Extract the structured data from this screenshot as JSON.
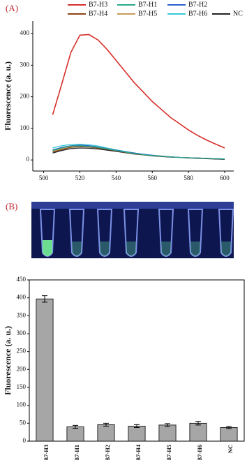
{
  "chart_data": [
    {
      "type": "line",
      "panel_label": "(A)",
      "ylabel": "Fluorescence (a. u.)",
      "x": [
        505,
        510,
        515,
        520,
        525,
        530,
        535,
        540,
        545,
        550,
        555,
        560,
        565,
        570,
        575,
        580,
        585,
        590,
        595,
        600
      ],
      "series": [
        {
          "name": "B7-H3",
          "color": "#d62f2a",
          "values": [
            143,
            240,
            340,
            395,
            397,
            380,
            350,
            315,
            280,
            245,
            215,
            185,
            160,
            135,
            115,
            95,
            78,
            63,
            50,
            38
          ]
        },
        {
          "name": "B7-H1",
          "color": "#2aa88a",
          "values": [
            30,
            38,
            44,
            45,
            43,
            40,
            35,
            30,
            25,
            21,
            17,
            14,
            12,
            10,
            8,
            7,
            6,
            5,
            4,
            3
          ]
        },
        {
          "name": "B7-H2",
          "color": "#2a5fcf",
          "values": [
            32,
            40,
            45,
            47,
            45,
            41,
            36,
            31,
            26,
            22,
            18,
            15,
            12,
            10,
            8,
            7,
            6,
            5,
            4,
            3
          ]
        },
        {
          "name": "B7-H4",
          "color": "#8b4513",
          "values": [
            25,
            33,
            40,
            42,
            41,
            38,
            34,
            29,
            24,
            20,
            17,
            14,
            12,
            10,
            8,
            7,
            6,
            5,
            4,
            3
          ]
        },
        {
          "name": "B7-H5",
          "color": "#c89a5a",
          "values": [
            28,
            36,
            42,
            44,
            43,
            40,
            35,
            30,
            25,
            21,
            17,
            14,
            12,
            10,
            8,
            7,
            6,
            5,
            4,
            3
          ]
        },
        {
          "name": "B7-H6",
          "color": "#3cc8d8",
          "values": [
            38,
            45,
            49,
            50,
            48,
            44,
            38,
            32,
            27,
            22,
            18,
            15,
            12,
            10,
            8,
            7,
            6,
            5,
            4,
            3
          ]
        },
        {
          "name": "NC",
          "color": "#222222",
          "values": [
            22,
            30,
            36,
            38,
            37,
            35,
            31,
            27,
            23,
            19,
            16,
            13,
            11,
            9,
            8,
            6,
            5,
            4,
            3,
            2
          ]
        }
      ],
      "xlim": [
        494,
        605
      ],
      "xticks": [
        500,
        520,
        540,
        560,
        580,
        600
      ],
      "ylim": [
        -35,
        440
      ],
      "yticks": [
        0,
        100,
        200,
        300,
        400
      ]
    },
    {
      "type": "bar",
      "panel_label": "(B)",
      "ylabel": "Fluorescence (a. u.)",
      "categories": [
        "B7-H3",
        "B7-H1",
        "B7-H2",
        "B7-H4",
        "B7-H5",
        "B7-H6",
        "NC"
      ],
      "values": [
        397,
        40,
        46,
        42,
        45,
        50,
        38
      ],
      "errors": [
        9,
        4,
        4,
        4,
        4,
        5,
        3
      ],
      "color": "#a6a6a6",
      "ylim": [
        0,
        450
      ],
      "yticks": [
        0,
        50,
        100,
        150,
        200,
        250,
        300,
        350,
        400,
        450
      ]
    }
  ]
}
